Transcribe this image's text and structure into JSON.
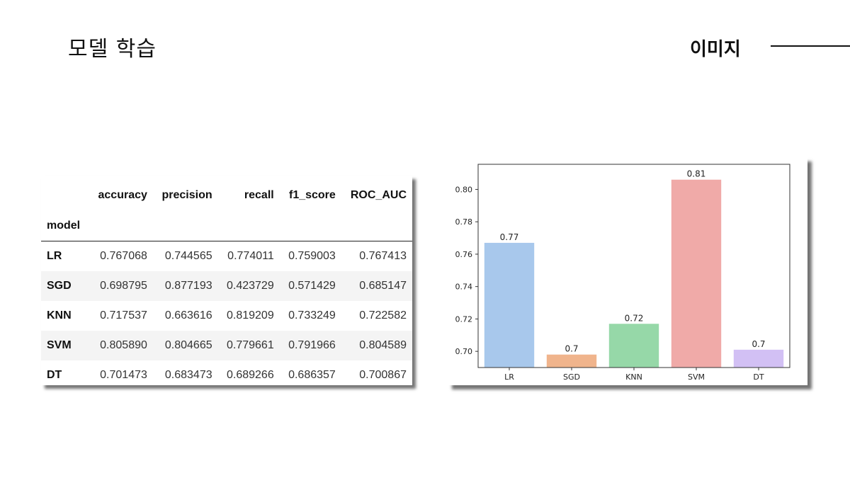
{
  "slide": {
    "title": "모델 학습",
    "section_label": "이미지"
  },
  "table": {
    "columns": [
      "accuracy",
      "precision",
      "recall",
      "f1_score",
      "ROC_AUC"
    ],
    "index_name": "model",
    "rows": [
      {
        "model": "LR",
        "values": [
          "0.767068",
          "0.744565",
          "0.774011",
          "0.759003",
          "0.767413"
        ]
      },
      {
        "model": "SGD",
        "values": [
          "0.698795",
          "0.877193",
          "0.423729",
          "0.571429",
          "0.685147"
        ]
      },
      {
        "model": "KNN",
        "values": [
          "0.717537",
          "0.663616",
          "0.819209",
          "0.733249",
          "0.722582"
        ]
      },
      {
        "model": "SVM",
        "values": [
          "0.805890",
          "0.804665",
          "0.779661",
          "0.791966",
          "0.804589"
        ]
      },
      {
        "model": "DT",
        "values": [
          "0.701473",
          "0.683473",
          "0.689266",
          "0.686357",
          "0.700867"
        ]
      }
    ]
  },
  "chart_data": {
    "type": "bar",
    "title": "",
    "xlabel": "",
    "ylabel": "",
    "categories": [
      "LR",
      "SGD",
      "KNN",
      "SVM",
      "DT"
    ],
    "values": [
      0.767,
      0.698,
      0.717,
      0.806,
      0.701
    ],
    "data_labels": [
      "0.77",
      "0.7",
      "0.72",
      "0.81",
      "0.7"
    ],
    "colors": [
      "#a8c8ec",
      "#f0b48c",
      "#96d8a8",
      "#f0aaa8",
      "#d2c0f4"
    ],
    "ylim": [
      0.69,
      0.8155
    ],
    "yticks": [
      0.7,
      0.72,
      0.74,
      0.76,
      0.78,
      0.8
    ],
    "ytick_labels": [
      "0.70",
      "0.72",
      "0.74",
      "0.76",
      "0.78",
      "0.80"
    ],
    "grid": false,
    "legend": false
  }
}
